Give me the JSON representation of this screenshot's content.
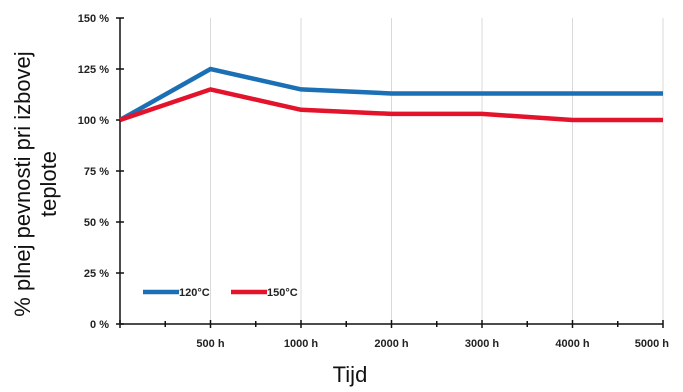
{
  "chart_data": {
    "type": "line",
    "title": "",
    "xlabel": "Tijd",
    "ylabel": "% plnej pevnosti pri izbovej teplote",
    "categories": [
      "",
      "500 h",
      "1000 h",
      "2000 h",
      "3000 h",
      "4000 h",
      "5000 h"
    ],
    "y_ticks": [
      "0 %",
      "25 %",
      "50 %",
      "75 %",
      "100 %",
      "125 %",
      "150 %"
    ],
    "ylim": [
      0,
      150
    ],
    "grid": "vertical",
    "legend_placement": "bottom-left",
    "series": [
      {
        "name": "120°C",
        "color": "#1a6fb5",
        "values": [
          100,
          125,
          115,
          113,
          113,
          113,
          113
        ]
      },
      {
        "name": "150°C",
        "color": "#e3132b",
        "values": [
          100,
          115,
          105,
          103,
          103,
          100,
          100
        ]
      }
    ]
  }
}
